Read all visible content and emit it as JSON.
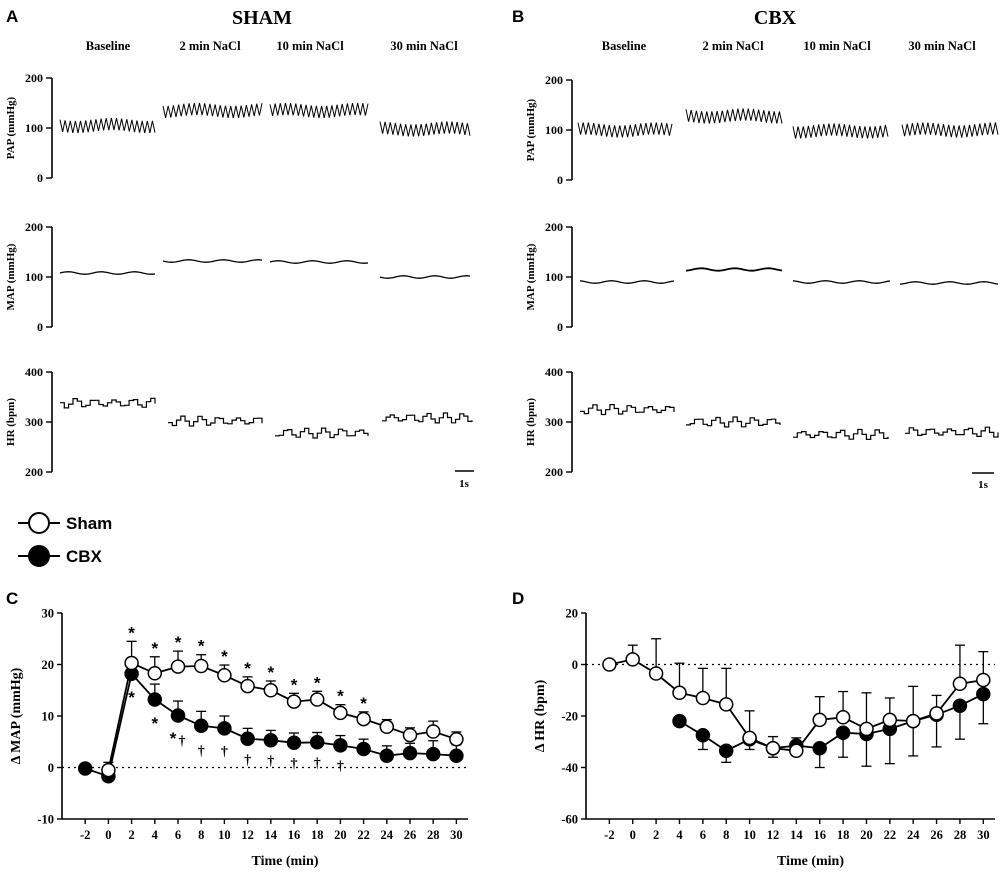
{
  "panels": {
    "A": {
      "letter": "A",
      "title": "SHAM"
    },
    "B": {
      "letter": "B",
      "title": "CBX"
    },
    "C": {
      "letter": "C"
    },
    "D": {
      "letter": "D"
    }
  },
  "condition_labels": [
    "Baseline",
    "2 min NaCl",
    "10 min NaCl",
    "30 min NaCl"
  ],
  "trace_rows": [
    {
      "ylabel": "PAP (mmHg)",
      "ticks": [
        "200",
        "100",
        "0"
      ]
    },
    {
      "ylabel": "MAP (mmHg)",
      "ticks": [
        "200",
        "100",
        "0"
      ]
    },
    {
      "ylabel": "HR (bpm)",
      "ticks": [
        "400",
        "300",
        "200"
      ]
    }
  ],
  "scale_bar_label": "1s",
  "traces": {
    "sham": {
      "pap_mean": [
        105,
        135,
        135,
        98
      ],
      "map": [
        108,
        132,
        130,
        100
      ],
      "hr": [
        338,
        302,
        278,
        308
      ]
    },
    "cbx": {
      "pap_mean": [
        100,
        128,
        98,
        100
      ],
      "map": [
        90,
        115,
        90,
        88
      ],
      "hr": [
        325,
        300,
        275,
        280
      ]
    }
  },
  "legend": {
    "sham": "Sham",
    "cbx": "CBX"
  },
  "significance_marks": {
    "star": "*",
    "dagger": "†"
  },
  "colors": {
    "ink": "#000000",
    "open_marker_fill": "#ffffff",
    "filled_marker": "#000000",
    "background": "#ffffff"
  },
  "chart_data": [
    {
      "panel": "C",
      "type": "line",
      "xlabel": "Time (min)",
      "ylabel": "Δ MAP (mmHg)",
      "ylim": [
        -10,
        30
      ],
      "yticks": [
        -10,
        0,
        10,
        20,
        30
      ],
      "xticks": [
        -2,
        0,
        2,
        4,
        6,
        8,
        10,
        12,
        14,
        16,
        18,
        20,
        22,
        24,
        26,
        28,
        30
      ],
      "zero_line": "dotted",
      "series": [
        {
          "name": "Sham",
          "marker": "open-circle",
          "x": [
            0,
            2,
            4,
            6,
            8,
            10,
            12,
            14,
            16,
            18,
            20,
            22,
            24,
            26,
            28,
            30
          ],
          "y": [
            -0.5,
            20.3,
            18.3,
            19.6,
            19.7,
            17.9,
            15.8,
            15.0,
            12.8,
            13.2,
            10.6,
            9.4,
            7.9,
            6.3,
            7.0,
            5.5
          ],
          "err": [
            1.5,
            4.2,
            3.2,
            3.0,
            2.2,
            2.0,
            1.8,
            1.8,
            1.6,
            1.6,
            1.6,
            1.4,
            1.4,
            1.4,
            2.0,
            1.4
          ]
        },
        {
          "name": "CBX",
          "marker": "filled-circle",
          "x": [
            -2,
            0,
            2,
            4,
            6,
            8,
            10,
            12,
            14,
            16,
            18,
            20,
            22,
            24,
            26,
            28,
            30
          ],
          "y": [
            -0.2,
            -1.7,
            18.2,
            13.2,
            10.1,
            8.1,
            7.6,
            5.6,
            5.3,
            4.8,
            4.9,
            4.3,
            3.6,
            2.3,
            2.8,
            2.6,
            2.3
          ],
          "err": [
            0.5,
            1.2,
            3.0,
            3.0,
            2.8,
            2.8,
            2.4,
            2.0,
            1.9,
            1.9,
            1.9,
            1.9,
            1.9,
            1.9,
            1.9,
            2.6,
            2.1
          ]
        }
      ],
      "sig_star_above_x": [
        2,
        4,
        6,
        8,
        10,
        12,
        14,
        16,
        18,
        20,
        22
      ],
      "sig_star_below_x": [
        2,
        4,
        6
      ],
      "sig_dagger_x": [
        6,
        8,
        10,
        12,
        14,
        16,
        18,
        20
      ]
    },
    {
      "panel": "D",
      "type": "line",
      "xlabel": "Time (min)",
      "ylabel": "Δ HR (bpm)",
      "ylim": [
        -60,
        20
      ],
      "yticks": [
        -60,
        -40,
        -20,
        0,
        20
      ],
      "xticks": [
        -2,
        0,
        2,
        4,
        6,
        8,
        10,
        12,
        14,
        16,
        18,
        20,
        22,
        24,
        26,
        28,
        30
      ],
      "zero_line": "dotted",
      "series": [
        {
          "name": "Sham",
          "marker": "open-circle",
          "x": [
            -2,
            0,
            2,
            4,
            6,
            8,
            10,
            12,
            14,
            16,
            18,
            20,
            22,
            24,
            26,
            28,
            30
          ],
          "y": [
            0,
            2.0,
            -3.5,
            -11.0,
            -13.0,
            -15.5,
            -28.5,
            -32.5,
            -33.5,
            -21.5,
            -20.5,
            -25.0,
            -21.5,
            -22.0,
            -19.0,
            -7.5,
            -6.0
          ],
          "err": [
            0,
            5.5,
            13.5,
            11.5,
            11.5,
            14.0,
            10.5,
            4.5,
            5.0,
            9.0,
            10.0,
            14.0,
            8.5,
            13.5,
            7.0,
            15.0,
            11.0
          ]
        },
        {
          "name": "CBX",
          "marker": "filled-circle",
          "x": [
            4,
            6,
            8,
            10,
            12,
            14,
            16,
            18,
            20,
            22,
            24,
            26,
            28,
            30
          ],
          "y": [
            -22.0,
            -27.5,
            -33.5,
            -29.0,
            -32.5,
            -31.5,
            -32.5,
            -26.5,
            -27.0,
            -25.0,
            -22.0,
            -19.5,
            -16.0,
            -11.5
          ],
          "err": [
            0,
            5.5,
            4.5,
            4.0,
            3.5,
            3.5,
            7.5,
            9.5,
            12.5,
            13.5,
            13.5,
            12.5,
            13.0,
            11.5
          ]
        }
      ]
    }
  ]
}
